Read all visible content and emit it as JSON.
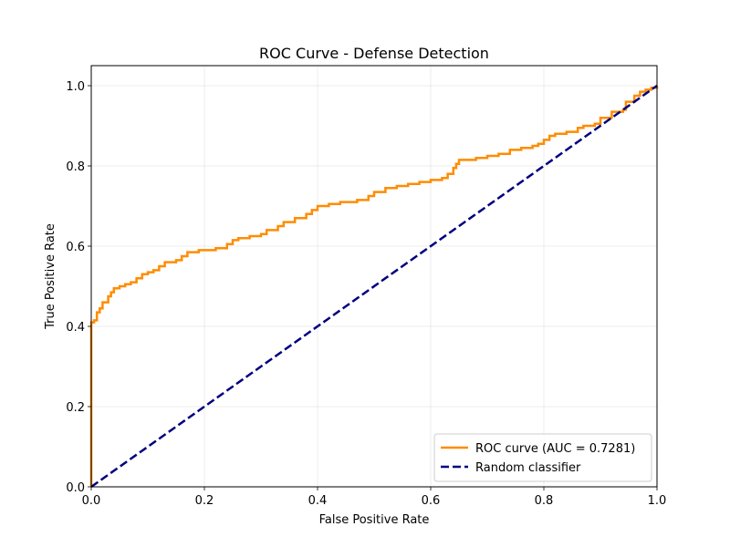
{
  "chart_data": {
    "type": "line",
    "title": "ROC Curve - Defense Detection",
    "xlabel": "False Positive Rate",
    "ylabel": "True Positive Rate",
    "xlim": [
      0.0,
      1.0
    ],
    "ylim": [
      0.0,
      1.05
    ],
    "x_ticks": [
      "0.0",
      "0.2",
      "0.4",
      "0.6",
      "0.8",
      "1.0"
    ],
    "y_ticks": [
      "0.0",
      "0.2",
      "0.4",
      "0.6",
      "0.8",
      "1.0"
    ],
    "grid": true,
    "legend_position": "lower-right",
    "series": [
      {
        "name": "ROC curve (AUC = 0.7281)",
        "color": "#ff8c00",
        "style": "solid",
        "x": [
          0.0,
          0.0,
          0.0,
          0.005,
          0.01,
          0.01,
          0.015,
          0.02,
          0.02,
          0.03,
          0.03,
          0.035,
          0.04,
          0.04,
          0.05,
          0.06,
          0.07,
          0.08,
          0.09,
          0.1,
          0.11,
          0.12,
          0.13,
          0.13,
          0.15,
          0.16,
          0.17,
          0.17,
          0.19,
          0.22,
          0.24,
          0.25,
          0.26,
          0.28,
          0.3,
          0.31,
          0.33,
          0.34,
          0.36,
          0.36,
          0.38,
          0.39,
          0.4,
          0.42,
          0.44,
          0.47,
          0.49,
          0.5,
          0.52,
          0.54,
          0.56,
          0.58,
          0.6,
          0.62,
          0.63,
          0.64,
          0.645,
          0.65,
          0.68,
          0.7,
          0.72,
          0.74,
          0.76,
          0.78,
          0.79,
          0.8,
          0.81,
          0.82,
          0.84,
          0.86,
          0.87,
          0.89,
          0.9,
          0.92,
          0.94,
          0.945,
          0.96,
          0.97,
          0.98,
          0.99,
          1.0
        ],
        "y": [
          0.0,
          0.38,
          0.41,
          0.415,
          0.42,
          0.435,
          0.445,
          0.445,
          0.46,
          0.46,
          0.475,
          0.485,
          0.49,
          0.495,
          0.5,
          0.505,
          0.51,
          0.52,
          0.53,
          0.535,
          0.54,
          0.55,
          0.555,
          0.56,
          0.565,
          0.575,
          0.58,
          0.585,
          0.59,
          0.595,
          0.605,
          0.615,
          0.62,
          0.625,
          0.63,
          0.64,
          0.65,
          0.66,
          0.665,
          0.67,
          0.68,
          0.69,
          0.7,
          0.705,
          0.71,
          0.715,
          0.725,
          0.735,
          0.745,
          0.75,
          0.755,
          0.76,
          0.765,
          0.77,
          0.78,
          0.795,
          0.805,
          0.815,
          0.82,
          0.825,
          0.83,
          0.84,
          0.845,
          0.85,
          0.855,
          0.865,
          0.875,
          0.88,
          0.885,
          0.895,
          0.9,
          0.905,
          0.92,
          0.935,
          0.94,
          0.96,
          0.975,
          0.985,
          0.99,
          0.995,
          1.0
        ]
      },
      {
        "name": "Random classifier",
        "color": "#000080",
        "style": "dashed",
        "x": [
          0.0,
          1.0
        ],
        "y": [
          0.0,
          1.0
        ]
      }
    ]
  }
}
